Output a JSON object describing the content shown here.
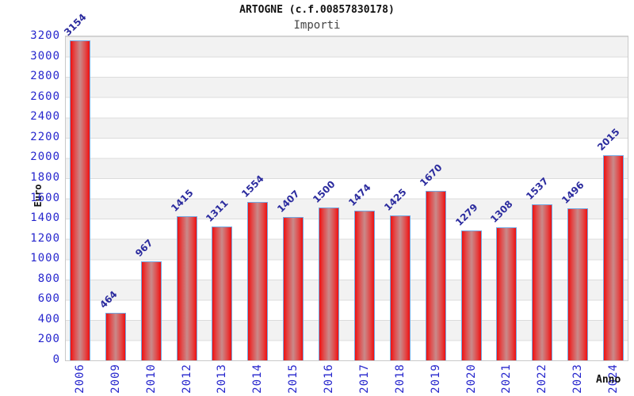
{
  "chart_data": {
    "type": "bar",
    "title": "ARTOGNE (c.f.00857830178)",
    "subtitle": "Importi",
    "xlabel": "Anno",
    "ylabel": "Euro",
    "categories": [
      "2006",
      "2009",
      "2010",
      "2012",
      "2013",
      "2014",
      "2015",
      "2016",
      "2017",
      "2018",
      "2019",
      "2020",
      "2021",
      "2022",
      "2023",
      "2024"
    ],
    "values": [
      3154,
      464,
      967,
      1415,
      1311,
      1554,
      1407,
      1500,
      1474,
      1425,
      1670,
      1279,
      1308,
      1537,
      1496,
      2015
    ],
    "ylim": [
      0,
      3200
    ],
    "ytick_step": 200,
    "grid": "horizontal-bands",
    "legend_position": "none",
    "colors": {
      "bar_edge": "#ee1111",
      "bar_center": "#c98a8a",
      "bar_border": "#74a7e0",
      "tick_label": "#2626cd",
      "value_label": "#2b2b9e",
      "band_gray": "#f2f2f2",
      "grid_line": "#dcdcdc",
      "plot_border": "#c9c9c9"
    }
  }
}
